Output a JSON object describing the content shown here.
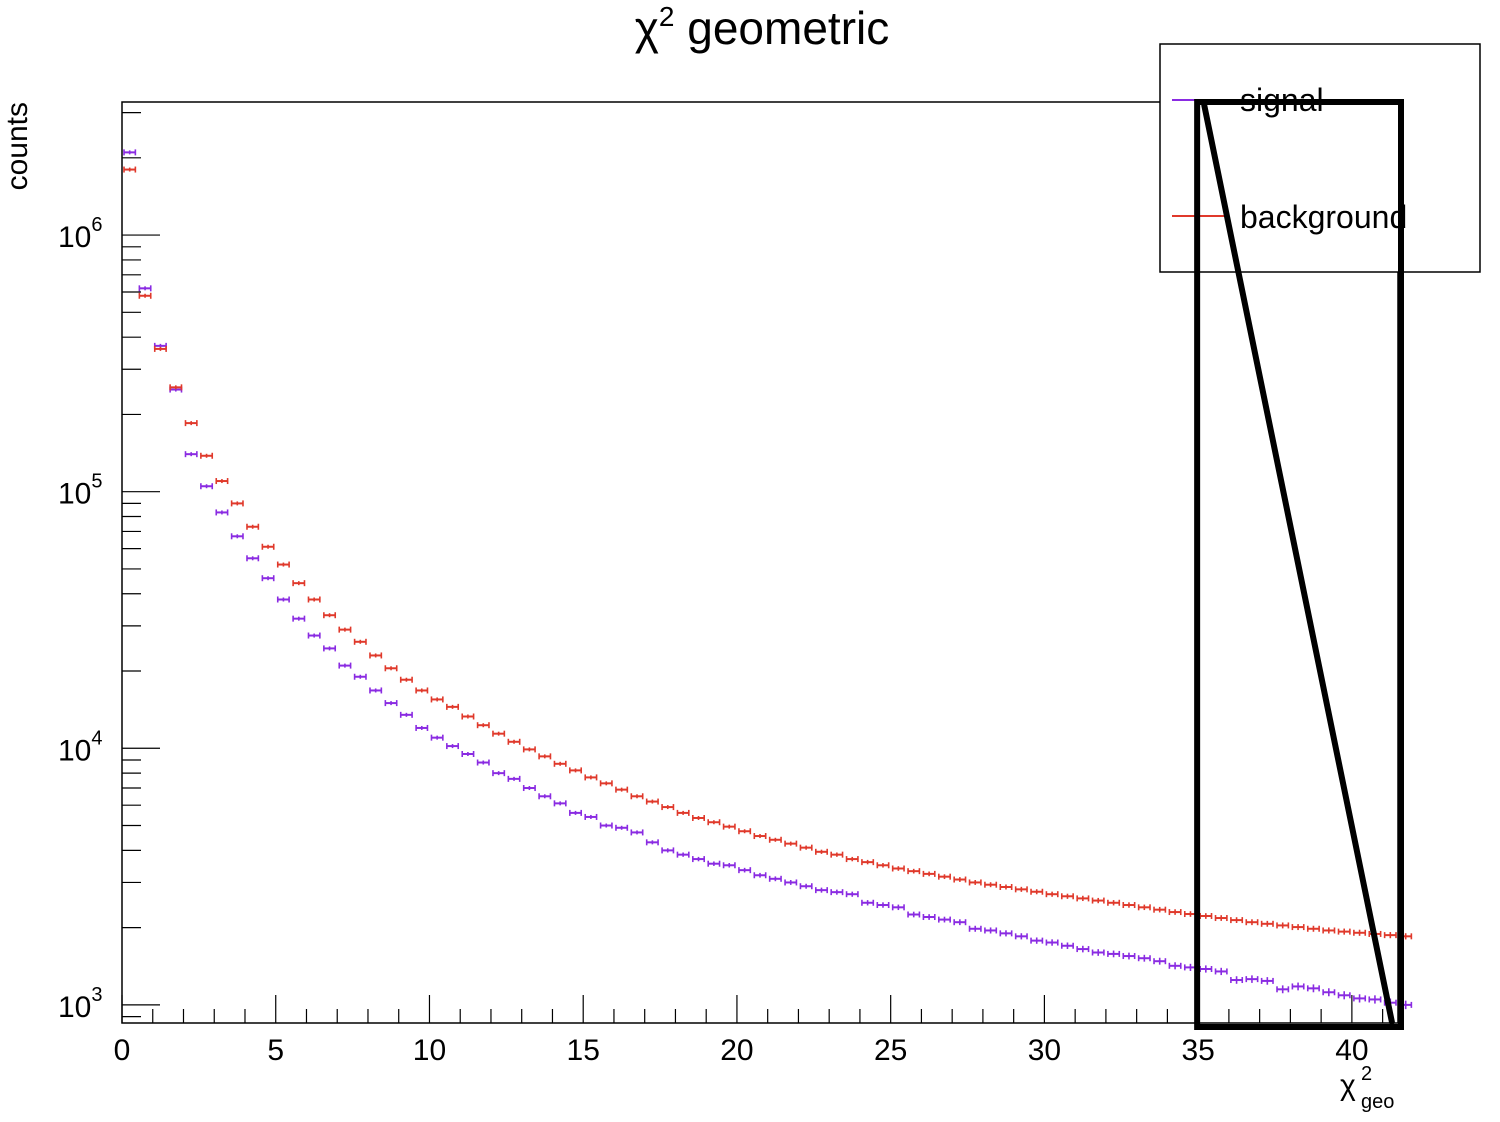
{
  "chart_data": {
    "type": "histogram",
    "title": "χ",
    "title_sup": "2",
    "title_rest": " geometric",
    "ylabel": "counts",
    "xlabel": "χ",
    "xlabel_sup": "2",
    "xlabel_sub": "geo",
    "xlim": [
      0,
      41.5
    ],
    "ylim": [
      850,
      3300000
    ],
    "log_y": true,
    "grid": false,
    "x_ticks": [
      0,
      5,
      10,
      15,
      20,
      25,
      30,
      35,
      40
    ],
    "y_ticks": [
      {
        "value": 1000,
        "base": "10",
        "exp": "3"
      },
      {
        "value": 10000,
        "base": "10",
        "exp": "4"
      },
      {
        "value": 100000,
        "base": "10",
        "exp": "5"
      },
      {
        "value": 1000000,
        "base": "10",
        "exp": "6"
      }
    ],
    "bin_width": 0.5,
    "series": [
      {
        "name": "signal",
        "color": "#8a2be2",
        "values": [
          2100000,
          620000,
          370000,
          250000,
          140000,
          105000,
          83000,
          67000,
          55000,
          46000,
          38000,
          32000,
          27500,
          24500,
          21000,
          19000,
          16800,
          15000,
          13500,
          12000,
          11000,
          10200,
          9500,
          8800,
          8000,
          7600,
          7000,
          6500,
          6100,
          5600,
          5400,
          5000,
          4900,
          4700,
          4300,
          4000,
          3850,
          3700,
          3550,
          3500,
          3350,
          3200,
          3100,
          3000,
          2900,
          2800,
          2750,
          2700,
          2500,
          2450,
          2400,
          2250,
          2200,
          2150,
          2100,
          1980,
          1950,
          1900,
          1850,
          1780,
          1750,
          1700,
          1650,
          1600,
          1580,
          1550,
          1520,
          1480,
          1420,
          1400,
          1380,
          1350,
          1250,
          1260,
          1240,
          1150,
          1180,
          1160,
          1120,
          1090,
          1060,
          1050,
          1020,
          1000
        ]
      },
      {
        "name": "background",
        "color": "#e0392b",
        "values": [
          1800000,
          580000,
          360000,
          255000,
          185000,
          138000,
          110000,
          90000,
          73000,
          61000,
          52000,
          44000,
          38000,
          33000,
          29000,
          26000,
          23000,
          20500,
          18500,
          16800,
          15500,
          14500,
          13300,
          12300,
          11400,
          10600,
          9900,
          9300,
          8700,
          8200,
          7700,
          7300,
          6900,
          6500,
          6200,
          5900,
          5600,
          5350,
          5150,
          4950,
          4750,
          4550,
          4400,
          4250,
          4100,
          3950,
          3850,
          3700,
          3600,
          3500,
          3400,
          3320,
          3240,
          3160,
          3080,
          3000,
          2940,
          2880,
          2820,
          2760,
          2700,
          2650,
          2600,
          2550,
          2500,
          2450,
          2400,
          2350,
          2300,
          2260,
          2220,
          2180,
          2140,
          2100,
          2070,
          2040,
          2010,
          1980,
          1950,
          1930,
          1910,
          1890,
          1870,
          1850
        ]
      }
    ],
    "legend": {
      "placement": "top-right",
      "entries": [
        "signal",
        "background"
      ]
    },
    "annotations": [
      {
        "type": "rectangle",
        "x_range": [
          35,
          41.5
        ],
        "y_range": [
          850,
          3300000
        ]
      },
      {
        "type": "line",
        "from": [
          35.2,
          3200000
        ],
        "to": [
          41.3,
          860
        ]
      }
    ]
  }
}
